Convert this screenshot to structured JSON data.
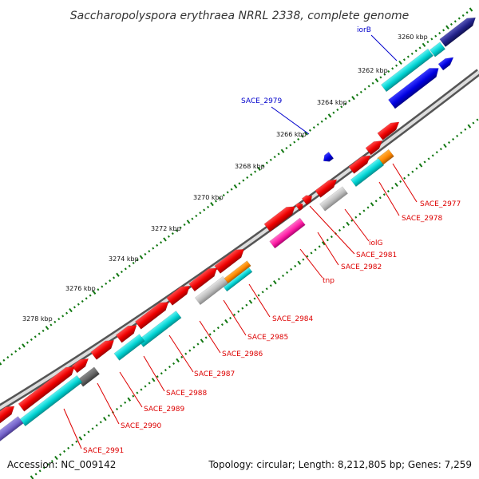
{
  "title": "Saccharopolyspora erythraea NRRL 2338, complete genome",
  "footer": {
    "accession": "Accession: NC_009142",
    "topology": "Topology: circular; Length: 8,212,805 bp; Genes: 7,259"
  },
  "ticks": [
    "3260 kbp",
    "3262 kbp",
    "3264 kbp",
    "3266 kbp",
    "3268 kbp",
    "3270 kbp",
    "3272 kbp",
    "3274 kbp",
    "3276 kbp",
    "3278 kbp"
  ],
  "labels_blue": [
    "iorB",
    "SACE_2979"
  ],
  "labels_red": [
    "SACE_2977",
    "SACE_2978",
    "iolG",
    "SACE_2981",
    "SACE_2982",
    "tnp",
    "SACE_2984",
    "SACE_2985",
    "SACE_2986",
    "SACE_2987",
    "SACE_2988",
    "SACE_2989",
    "SACE_2990",
    "SACE_2991"
  ],
  "colors": {
    "cds_forward": "#ee0000",
    "cds_blue": "#0000ee",
    "cds_navy": "#22228a",
    "rna_cyan": "#00d8d8",
    "gray": "#c0c0c0",
    "dark_gray": "#666666",
    "magenta": "#ff22aa",
    "orange": "#ff8800",
    "purple": "#7766cc",
    "tick_green": "#117711",
    "label_red": "#dd0000",
    "label_blue": "#0000cc"
  }
}
